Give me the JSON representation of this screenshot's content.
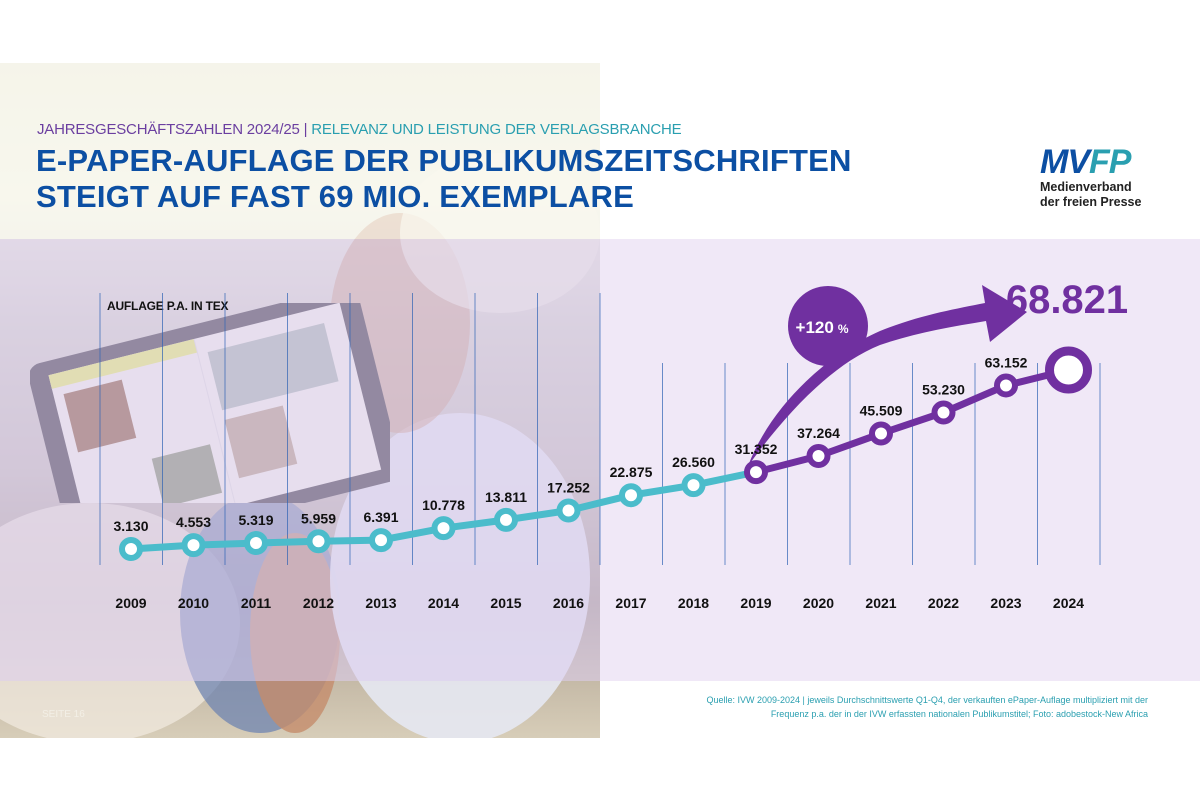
{
  "header": {
    "subtitle_part1": "JAHRESGESCHÄFTSZAHLEN 2024/25",
    "subtitle_separator": "|",
    "subtitle_part2": "RELEVANZ UND LEISTUNG DER VERLAGSBRANCHE",
    "title_line1": "E-PAPER-AUFLAGE DER PUBLIKUMSZEITSCHRIFTEN",
    "title_line2": "STEIGT AUF FAST 69 MIO. EXEMPLARE"
  },
  "logo": {
    "mark_part1": "MV",
    "mark_part2": "FP",
    "line1": "Medienverband",
    "line2": "der freien Presse"
  },
  "footer": {
    "source_line1": "Quelle: IVW 2009-2024 | jeweils Durchschnittswerte Q1-Q4, der verkauften ePaper-Auflage multipliziert mit der",
    "source_line2": "Frequenz p.a. der in der IVW erfassten nationalen Publikumstitel; Foto: adobestock-New Africa",
    "page_label": "SEITE 16"
  },
  "colors": {
    "title_blue": "#0c4fa3",
    "teal": "#4bbccb",
    "purple": "#7030a0",
    "band": "#f0e8f7",
    "grid": "#2f63b5"
  },
  "chart_data": {
    "type": "line",
    "ylabel": "AUFLAGE P.A. IN TEX",
    "x": [
      "2009",
      "2010",
      "2011",
      "2012",
      "2013",
      "2014",
      "2015",
      "2016",
      "2017",
      "2018",
      "2019",
      "2020",
      "2021",
      "2022",
      "2023",
      "2024"
    ],
    "values": [
      3130,
      4553,
      5319,
      5959,
      6391,
      10778,
      13811,
      17252,
      22875,
      26560,
      31352,
      37264,
      45509,
      53230,
      63152,
      68821
    ],
    "value_labels": [
      "3.130",
      "4.553",
      "5.319",
      "5.959",
      "6.391",
      "10.778",
      "13.811",
      "17.252",
      "22.875",
      "26.560",
      "31.352",
      "37.264",
      "45.509",
      "53.230",
      "63.152",
      "68.821"
    ],
    "series_segments": [
      {
        "name": "2009–2019",
        "from": "2009",
        "to": "2019",
        "color": "#4bbccb"
      },
      {
        "name": "2019–2024",
        "from": "2019",
        "to": "2024",
        "color": "#7030a0"
      }
    ],
    "ylim": [
      0,
      70000
    ],
    "grid": "vertical",
    "annotations": {
      "growth": "+120",
      "growth_unit": "%",
      "highlight_value": "68.821"
    }
  }
}
